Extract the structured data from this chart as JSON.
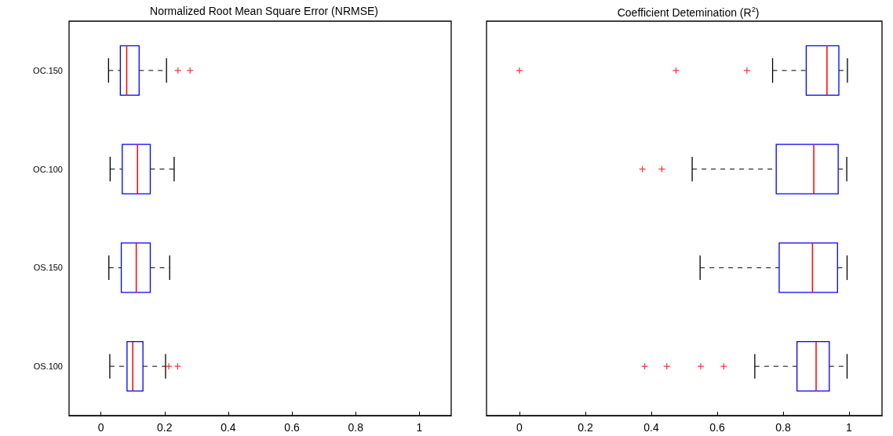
{
  "chart_data": [
    {
      "type": "box",
      "title": "Normalized Root Mean Square Error (NRMSE)",
      "orientation": "horizontal",
      "categories": [
        "OC.150",
        "OC.100",
        "OS.150",
        "OS.100"
      ],
      "color": "#0000ff",
      "marker": "cross",
      "line_style": "dashed",
      "grid": false,
      "xlim": [
        -0.1,
        1.1
      ],
      "xticks": [
        0,
        0.2,
        0.4,
        0.6,
        0.8,
        1
      ],
      "boxes": [
        {
          "low": 0.024,
          "q1": 0.061,
          "median": 0.081,
          "q3": 0.12,
          "high": 0.206,
          "outliers": [
            0.242,
            0.28
          ]
        },
        {
          "low": 0.029,
          "q1": 0.067,
          "median": 0.115,
          "q3": 0.155,
          "high": 0.23
        },
        {
          "low": 0.025,
          "q1": 0.064,
          "median": 0.111,
          "q3": 0.155,
          "high": 0.216
        },
        {
          "low": 0.028,
          "q1": 0.082,
          "median": 0.1,
          "q3": 0.132,
          "high": 0.203,
          "outliers": [
            0.213,
            0.241
          ]
        }
      ]
    },
    {
      "type": "box",
      "title": "Coefficient Detemination (R$^{2}$)",
      "orientation": "horizontal",
      "color": "#0000ff",
      "marker": "cross",
      "line_style": "dashed",
      "grid": false,
      "tick_labels": "x",
      "xlim": [
        -0.1,
        1.1
      ],
      "xticks": [
        0,
        0.2,
        0.4,
        0.6,
        0.8,
        1
      ],
      "boxes": [
        {
          "low": 0.768,
          "q1": 0.87,
          "median": 0.933,
          "q3": 0.969,
          "high": 0.995,
          "outliers": [
            0,
            0.475,
            0.69
          ]
        },
        {
          "low": 0.524,
          "q1": 0.779,
          "median": 0.893,
          "q3": 0.967,
          "high": 0.993,
          "outliers": [
            0.373,
            0.432
          ]
        },
        {
          "low": 0.548,
          "q1": 0.788,
          "median": 0.889,
          "q3": 0.965,
          "high": 0.994
        },
        {
          "low": 0.714,
          "q1": 0.842,
          "median": 0.9,
          "q3": 0.94,
          "high": 0.994,
          "outliers": [
            0.38,
            0.447,
            0.55,
            0.62
          ]
        }
      ]
    }
  ]
}
